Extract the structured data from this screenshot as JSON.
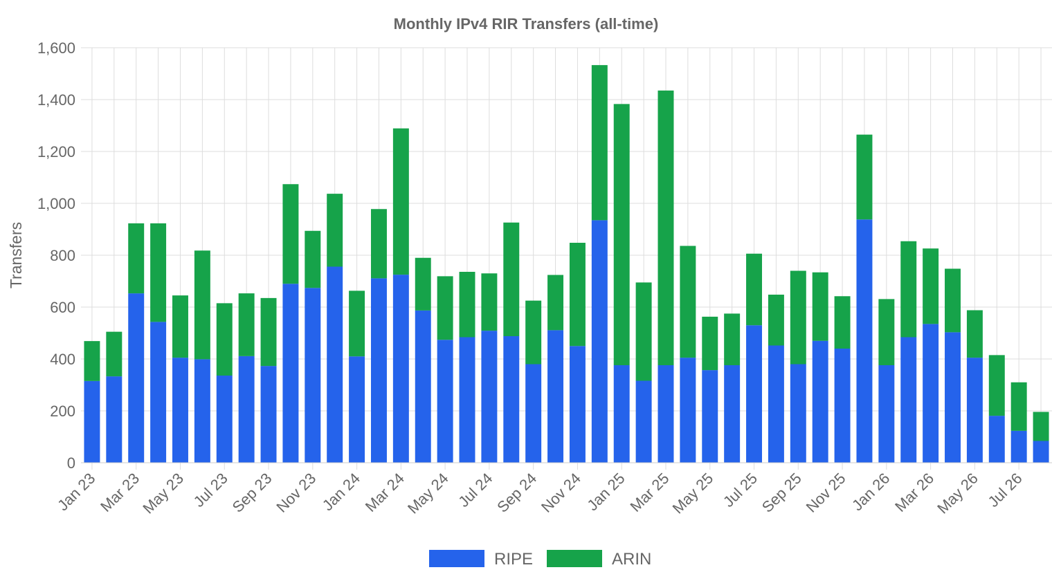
{
  "chart_data": {
    "type": "bar",
    "stacked": true,
    "title": "Monthly IPv4 RIR Transfers (all-time)",
    "xlabel": "",
    "ylabel": "Transfers",
    "ylim": [
      0,
      1600
    ],
    "yticks": [
      0,
      200,
      400,
      600,
      800,
      1000,
      1200,
      1400,
      1600
    ],
    "ytick_labels": [
      "0",
      "200",
      "400",
      "600",
      "800",
      "1,000",
      "1,200",
      "1,400",
      "1,600"
    ],
    "grid": true,
    "legend_position": "bottom",
    "categories": [
      "Jan 23",
      "Feb 23",
      "Mar 23",
      "Apr 23",
      "May 23",
      "Jun 23",
      "Jul 23",
      "Aug 23",
      "Sep 23",
      "Oct 23",
      "Nov 23",
      "Dec 23",
      "Jan 24",
      "Feb 24",
      "Mar 24",
      "Apr 24",
      "May 24",
      "Jun 24",
      "Jul 24",
      "Aug 24",
      "Sep 24",
      "Oct 24",
      "Nov 24",
      "Dec 24",
      "Jan 25",
      "Feb 25",
      "Mar 25",
      "Apr 25",
      "May 25",
      "Jun 25",
      "Jul 25",
      "Aug 25",
      "Sep 25",
      "Oct 25",
      "Nov 25",
      "Dec 25",
      "Jan 26",
      "Feb 26",
      "Mar 26",
      "Apr 26",
      "May 26",
      "Jun 26",
      "Jul 26",
      "Aug 26"
    ],
    "tick_labels": [
      "Jan 23",
      "Mar 23",
      "May 23",
      "Jul 23",
      "Sep 23",
      "Nov 23",
      "Jan 24",
      "Mar 24",
      "May 24",
      "Jul 24",
      "Sep 24",
      "Nov 24",
      "Jan 25",
      "Mar 25",
      "May 25",
      "Jul 25",
      "Sep 25",
      "Nov 25",
      "Jan 26",
      "Mar 26",
      "May 26",
      "Jul 26"
    ],
    "series": [
      {
        "name": "RIPE",
        "color": "#2563eb",
        "values": [
          315,
          333,
          653,
          543,
          405,
          399,
          336,
          411,
          373,
          690,
          674,
          756,
          410,
          711,
          725,
          587,
          474,
          484,
          509,
          488,
          380,
          511,
          450,
          935,
          376,
          316,
          376,
          405,
          357,
          376,
          530,
          452,
          380,
          470,
          440,
          938,
          376,
          484,
          535,
          503,
          405,
          181,
          123,
          84
        ]
      },
      {
        "name": "ARIN",
        "color": "#16a34a",
        "values": [
          154,
          172,
          270,
          380,
          240,
          419,
          279,
          242,
          262,
          384,
          220,
          281,
          253,
          267,
          564,
          203,
          245,
          252,
          221,
          438,
          245,
          213,
          398,
          598,
          1007,
          379,
          1059,
          431,
          206,
          199,
          276,
          196,
          360,
          264,
          202,
          327,
          255,
          370,
          291,
          245,
          183,
          234,
          187,
          112
        ]
      }
    ]
  }
}
